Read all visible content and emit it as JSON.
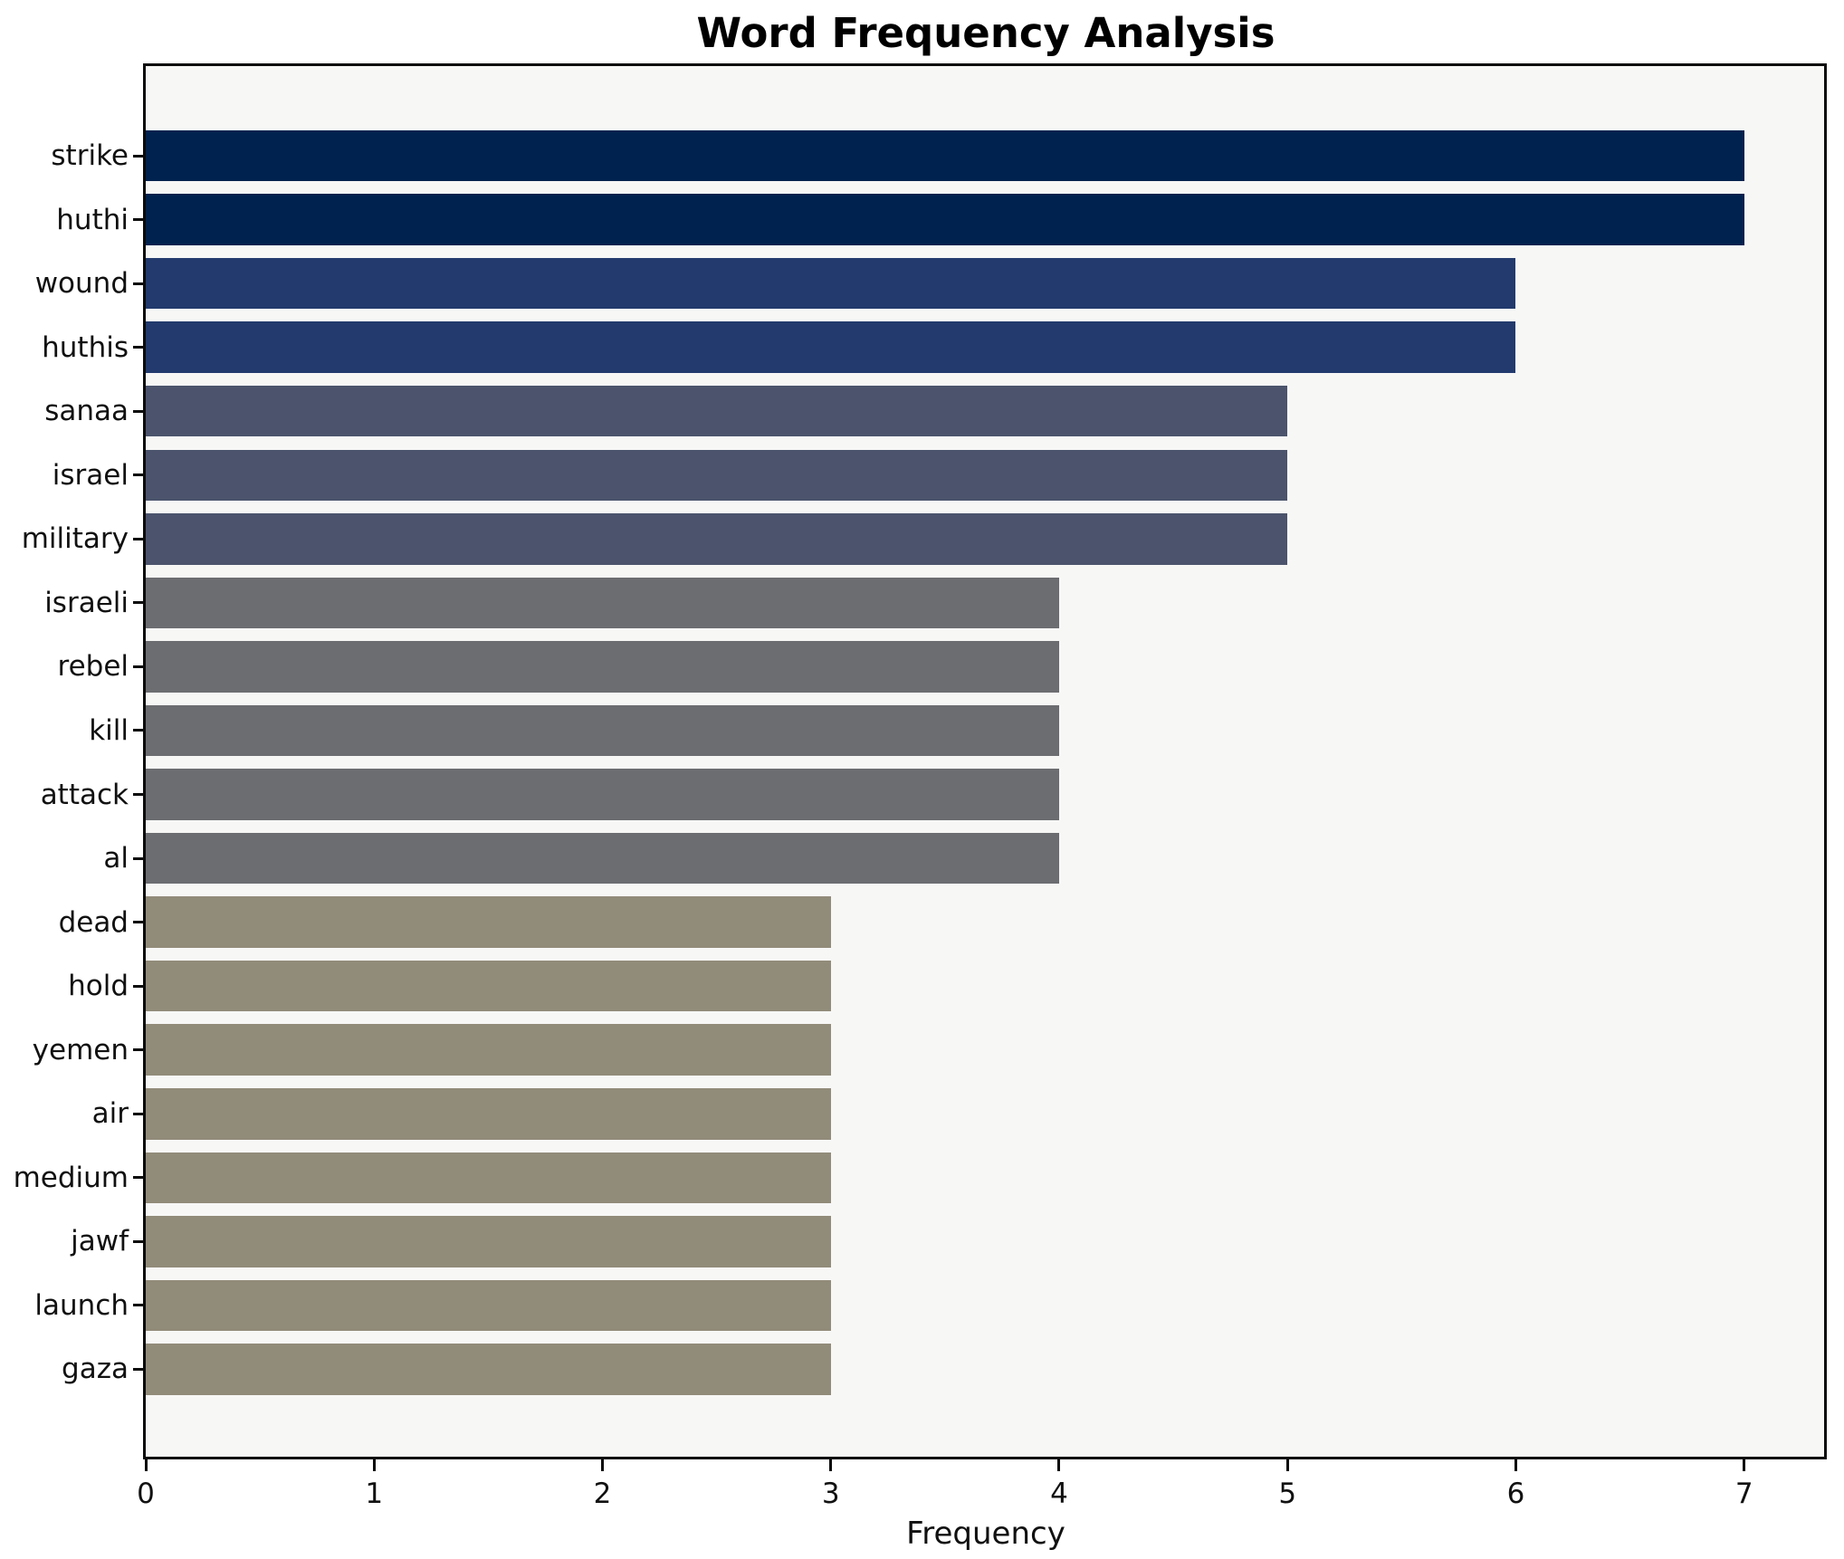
{
  "title": "Word Frequency Analysis",
  "chart_data": {
    "type": "bar",
    "orientation": "horizontal",
    "title": "Word Frequency Analysis",
    "xlabel": "Frequency",
    "ylabel": "",
    "categories": [
      "strike",
      "huthi",
      "wound",
      "huthis",
      "sanaa",
      "israel",
      "military",
      "israeli",
      "rebel",
      "kill",
      "attack",
      "al",
      "dead",
      "hold",
      "yemen",
      "air",
      "medium",
      "jawf",
      "launch",
      "gaza"
    ],
    "values": [
      7,
      7,
      6,
      6,
      5,
      5,
      5,
      4,
      4,
      4,
      4,
      4,
      3,
      3,
      3,
      3,
      3,
      3,
      3,
      3
    ],
    "bar_colors": [
      "#00224e",
      "#00224e",
      "#223a6d",
      "#223a6d",
      "#4b546c",
      "#4b546c",
      "#4b546c",
      "#6c6d71",
      "#6c6d71",
      "#6c6d71",
      "#6c6d71",
      "#6c6d71",
      "#918b79",
      "#918b79",
      "#918b79",
      "#918b79",
      "#918b79",
      "#918b79",
      "#918b79",
      "#918b79"
    ],
    "xlim": [
      0,
      7.35
    ],
    "x_ticks": [
      0,
      1,
      2,
      3,
      4,
      5,
      6,
      7
    ],
    "grid": false,
    "legend": null,
    "plot_background": "#f7f7f6",
    "figure_background": "#ffffff",
    "axis_color": "#0b0b0b"
  }
}
